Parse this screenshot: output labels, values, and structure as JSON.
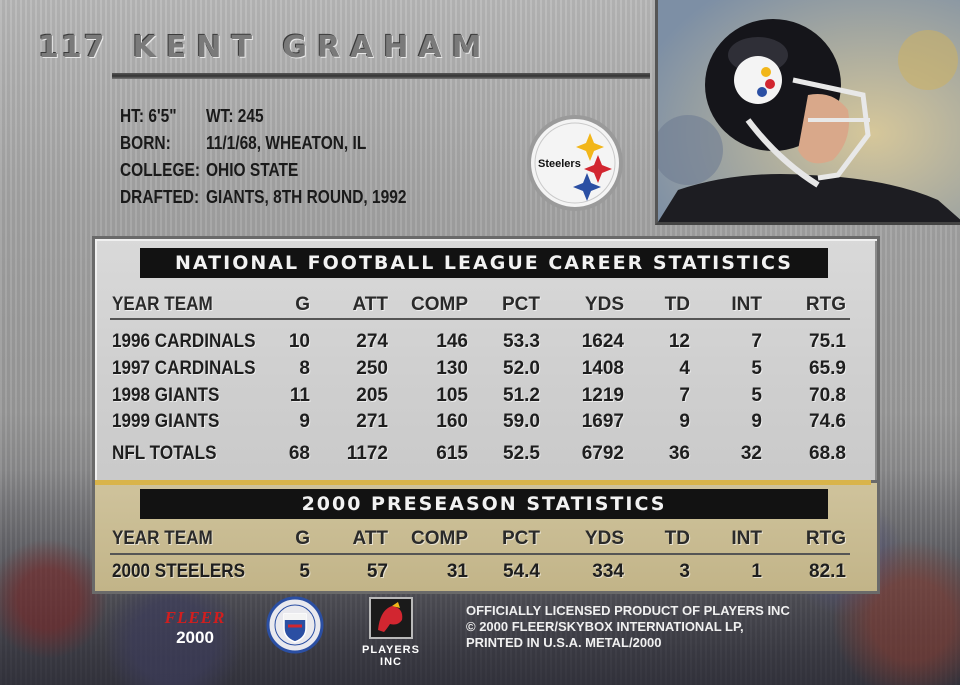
{
  "card": {
    "number": "117",
    "player_name": "KENT GRAHAM",
    "team_logo_text": "Steelers"
  },
  "bio": {
    "ht_label": "HT: 6'5\"",
    "wt_label": "WT: 245",
    "born_label": "BORN:",
    "born_value": "11/1/68, WHEATON, IL",
    "college_label": "COLLEGE:",
    "college_value": "OHIO STATE",
    "drafted_label": "DRAFTED:",
    "drafted_value": "GIANTS, 8TH ROUND, 1992"
  },
  "career": {
    "title": "NATIONAL FOOTBALL LEAGUE CAREER STATISTICS",
    "headers": [
      "YEAR TEAM",
      "G",
      "ATT",
      "COMP",
      "PCT",
      "YDS",
      "TD",
      "INT",
      "RTG"
    ],
    "rows": [
      [
        "1996 CARDINALS",
        "10",
        "274",
        "146",
        "53.3",
        "1624",
        "12",
        "7",
        "75.1"
      ],
      [
        "1997 CARDINALS",
        "8",
        "250",
        "130",
        "52.0",
        "1408",
        "4",
        "5",
        "65.9"
      ],
      [
        "1998 GIANTS",
        "11",
        "205",
        "105",
        "51.2",
        "1219",
        "7",
        "5",
        "70.8"
      ],
      [
        "1999 GIANTS",
        "9",
        "271",
        "160",
        "59.0",
        "1697",
        "9",
        "9",
        "74.6"
      ]
    ],
    "totals": [
      "NFL TOTALS",
      "68",
      "1172",
      "615",
      "52.5",
      "6792",
      "36",
      "32",
      "68.8"
    ]
  },
  "preseason": {
    "title": "2000 PRESEASON STATISTICS",
    "headers": [
      "YEAR TEAM",
      "G",
      "ATT",
      "COMP",
      "PCT",
      "YDS",
      "TD",
      "INT",
      "RTG"
    ],
    "rows": [
      [
        "2000 STEELERS",
        "5",
        "57",
        "31",
        "54.4",
        "334",
        "3",
        "1",
        "82.1"
      ]
    ]
  },
  "footer": {
    "fleer_brand": "FLEER",
    "fleer_year": "2000",
    "players_label": "PLAYERS INC",
    "legal_1": "OFFICIALLY LICENSED PRODUCT OF PLAYERS INC",
    "legal_2": "© 2000 FLEER/SKYBOX INTERNATIONAL LP,",
    "legal_3": "PRINTED IN U.S.A. METAL/2000"
  },
  "colors": {
    "banner": "#121212",
    "gold_rule": "#d9b44a",
    "fleer_red": "#d21e1e",
    "steelers_yellow": "#f2b619",
    "steelers_red": "#d22630",
    "steelers_blue": "#2b4fa3"
  },
  "icons": [
    "steelers-logo-icon",
    "helmet-photo",
    "nfl-shield-icon",
    "players-inc-icon"
  ]
}
